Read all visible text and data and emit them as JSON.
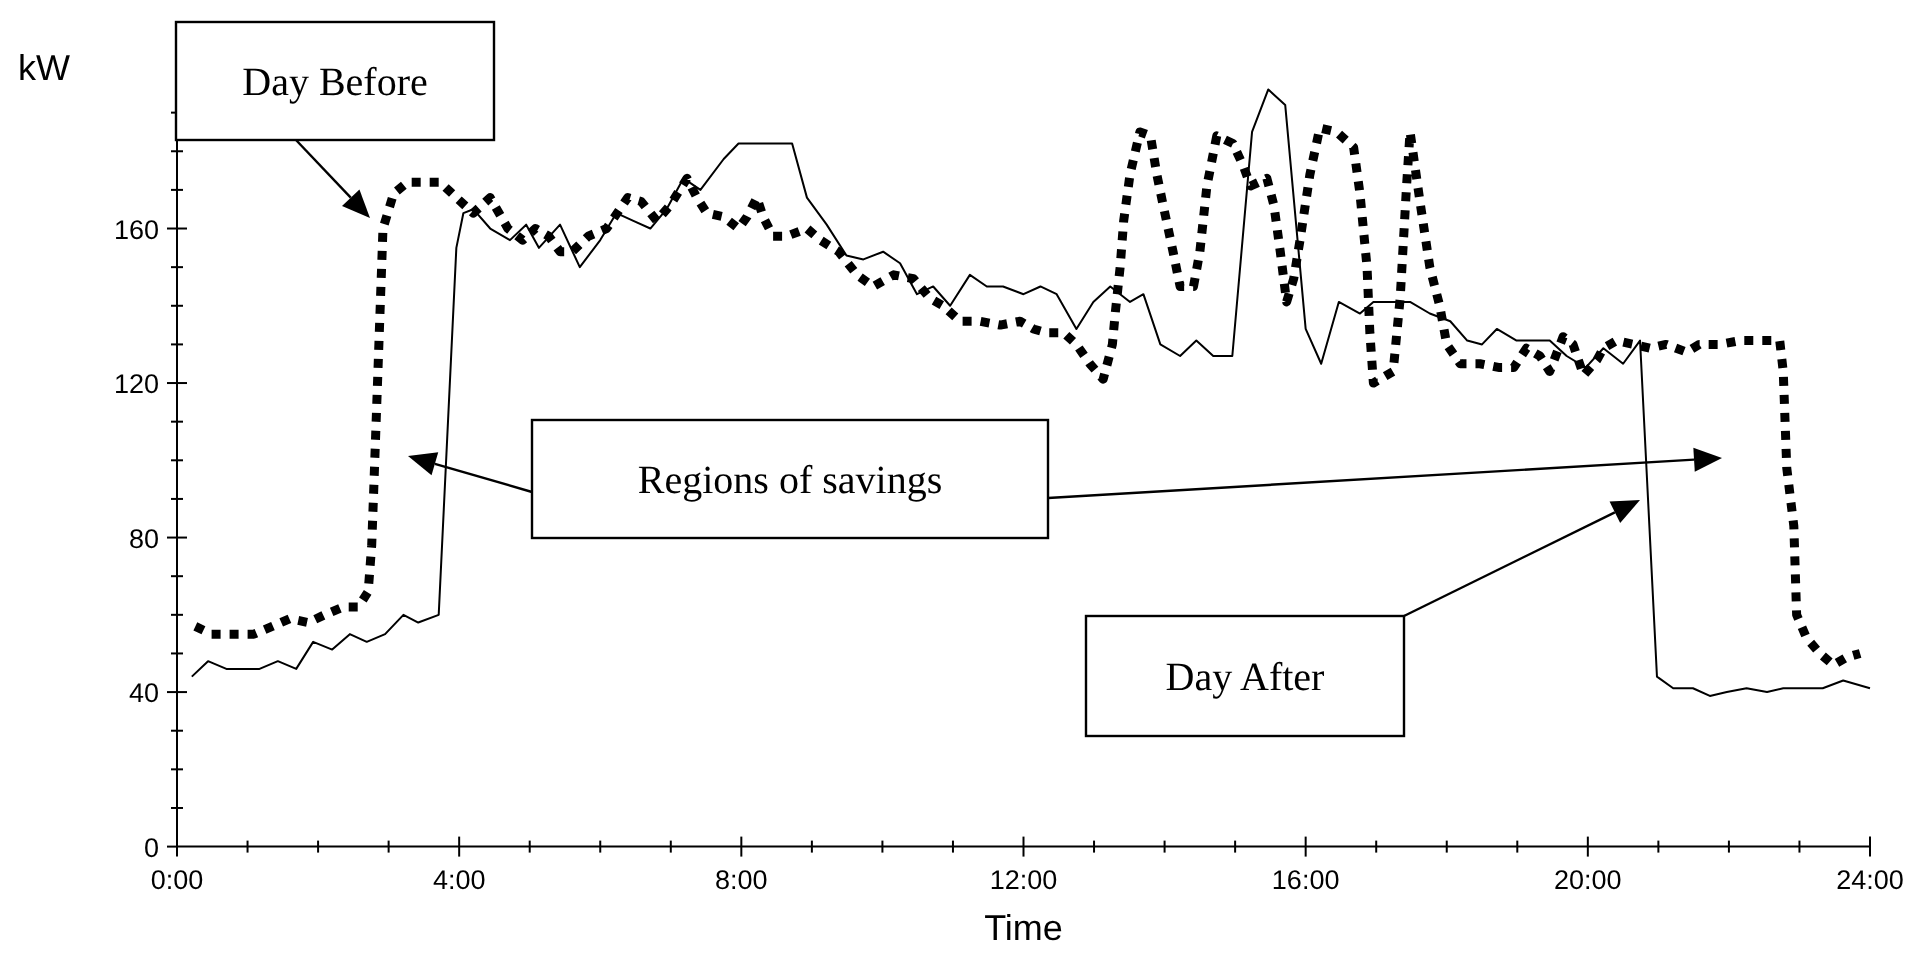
{
  "chart_data": {
    "type": "line",
    "xlabel": "Time",
    "ylabel": "kW",
    "xlim": [
      0,
      24
    ],
    "ylim": [
      0,
      200
    ],
    "xticks": [
      {
        "value": 0,
        "label": "0:00"
      },
      {
        "value": 1,
        "label": null
      },
      {
        "value": 2,
        "label": null
      },
      {
        "value": 3,
        "label": null
      },
      {
        "value": 4,
        "label": "4:00"
      },
      {
        "value": 5,
        "label": null
      },
      {
        "value": 6,
        "label": null
      },
      {
        "value": 7,
        "label": null
      },
      {
        "value": 8,
        "label": "8:00"
      },
      {
        "value": 9,
        "label": null
      },
      {
        "value": 10,
        "label": null
      },
      {
        "value": 11,
        "label": null
      },
      {
        "value": 12,
        "label": "12:00"
      },
      {
        "value": 13,
        "label": null
      },
      {
        "value": 14,
        "label": null
      },
      {
        "value": 15,
        "label": null
      },
      {
        "value": 16,
        "label": "16:00"
      },
      {
        "value": 17,
        "label": null
      },
      {
        "value": 18,
        "label": null
      },
      {
        "value": 19,
        "label": null
      },
      {
        "value": 20,
        "label": "20:00"
      },
      {
        "value": 21,
        "label": null
      },
      {
        "value": 22,
        "label": null
      },
      {
        "value": 23,
        "label": null
      },
      {
        "value": 24,
        "label": "24:00"
      }
    ],
    "yticks": [
      0,
      {
        "value": 10,
        "label": null
      },
      {
        "value": 20,
        "label": null
      },
      {
        "value": 30,
        "label": null
      },
      40,
      {
        "value": 50,
        "label": null
      },
      {
        "value": 60,
        "label": null
      },
      {
        "value": 70,
        "label": null
      },
      80,
      {
        "value": 90,
        "label": null
      },
      {
        "value": 100,
        "label": null
      },
      {
        "value": 110,
        "label": null
      },
      120,
      {
        "value": 130,
        "label": null
      },
      {
        "value": 140,
        "label": null
      },
      {
        "value": 150,
        "label": null
      },
      160,
      {
        "value": 170,
        "label": null
      },
      {
        "value": 180,
        "label": null
      },
      {
        "value": 190,
        "label": null
      }
    ],
    "grid": false,
    "legend": false,
    "marker": "none",
    "annotations": [
      "Regions of savings"
    ],
    "series": [
      {
        "name": "Day Before",
        "color": "#000000",
        "line_style": "dotted",
        "x": [
          0.26,
          0.49,
          0.8,
          1.09,
          1.35,
          1.6,
          1.86,
          2.09,
          2.35,
          2.57,
          2.71,
          2.76,
          2.79,
          2.92,
          3.07,
          3.27,
          3.52,
          3.73,
          3.96,
          4.2,
          4.44,
          4.69,
          4.9,
          5.08,
          5.27,
          5.43,
          5.6,
          5.83,
          6.09,
          6.39,
          6.58,
          6.8,
          6.99,
          7.23,
          7.37,
          7.51,
          7.75,
          7.96,
          8.08,
          8.22,
          8.31,
          8.45,
          8.64,
          8.93,
          9.12,
          9.38,
          9.64,
          9.87,
          10.16,
          10.44,
          10.67,
          10.86,
          11.1,
          11.38,
          11.67,
          11.95,
          12.14,
          12.33,
          12.57,
          12.75,
          12.94,
          13.13,
          13.26,
          13.3,
          13.37,
          13.42,
          13.51,
          13.65,
          13.8,
          13.89,
          13.98,
          14.12,
          14.22,
          14.41,
          14.5,
          14.6,
          14.74,
          14.97,
          15.12,
          15.22,
          15.45,
          15.55,
          15.64,
          15.73,
          15.83,
          15.92,
          16.06,
          16.2,
          16.44,
          16.68,
          16.77,
          16.87,
          16.91,
          16.96,
          17.24,
          17.34,
          17.43,
          17.48,
          17.62,
          17.76,
          17.9,
          18.0,
          18.19,
          18.47,
          18.75,
          18.95,
          19.13,
          19.32,
          19.46,
          19.65,
          19.79,
          19.94,
          20.13,
          20.22,
          20.41,
          20.65,
          20.88,
          21.11,
          21.4,
          21.58,
          21.87,
          22.16,
          22.44,
          22.72,
          22.77,
          22.82,
          22.92,
          22.96,
          23.1,
          23.29,
          23.48,
          23.67,
          23.86
        ],
        "values": [
          57,
          55,
          55,
          55,
          57,
          59,
          58,
          60,
          62,
          62,
          66,
          78,
          93,
          160,
          169,
          172,
          172,
          172,
          168,
          164,
          168,
          160,
          157,
          160,
          158,
          154,
          154,
          158,
          160,
          168,
          167,
          162,
          166,
          173,
          168,
          164,
          163,
          160,
          163,
          168,
          163,
          158,
          158,
          160,
          157,
          154,
          148,
          145,
          148,
          147,
          142,
          140,
          136,
          136,
          135,
          136,
          134,
          133,
          133,
          130,
          125,
          121,
          130,
          138,
          150,
          162,
          174,
          185,
          184,
          174,
          166,
          154,
          145,
          145,
          154,
          171,
          184,
          182,
          176,
          171,
          173,
          166,
          154,
          141,
          147,
          157,
          174,
          186,
          185,
          181,
          169,
          150,
          133,
          120,
          123,
          142,
          171,
          185,
          167,
          150,
          140,
          130,
          125,
          125,
          124,
          124,
          129,
          127,
          123,
          132,
          130,
          122,
          126,
          129,
          131,
          130,
          129,
          130,
          128,
          130,
          130,
          131,
          131,
          131,
          123,
          98,
          83,
          60,
          54,
          50,
          47,
          49,
          50
        ]
      },
      {
        "name": "Day After",
        "color": "#000000",
        "line_style": "solid",
        "x": [
          0.21,
          0.44,
          0.7,
          1.17,
          1.43,
          1.69,
          1.93,
          2.2,
          2.45,
          2.69,
          2.95,
          3.21,
          3.42,
          3.71,
          3.96,
          4.06,
          4.2,
          4.44,
          4.72,
          4.95,
          5.13,
          5.43,
          5.71,
          6.0,
          6.23,
          6.47,
          6.71,
          6.94,
          7.18,
          7.42,
          7.75,
          7.96,
          8.72,
          8.93,
          9.21,
          9.49,
          9.73,
          10.01,
          10.25,
          10.49,
          10.72,
          10.96,
          11.24,
          11.48,
          11.71,
          12.0,
          12.24,
          12.47,
          12.75,
          12.99,
          13.23,
          13.51,
          13.7,
          13.94,
          14.22,
          14.45,
          14.69,
          14.96,
          15.24,
          15.47,
          15.71,
          16.0,
          16.22,
          16.47,
          16.77,
          16.96,
          17.48,
          17.76,
          18.05,
          18.29,
          18.5,
          18.71,
          18.99,
          19.46,
          19.7,
          19.97,
          20.22,
          20.5,
          20.74,
          20.98,
          21.21,
          21.49,
          21.73,
          21.97,
          22.25,
          22.54,
          22.77,
          23.01,
          23.33,
          23.62,
          24.0
        ],
        "values": [
          44,
          48,
          46,
          46,
          48,
          46,
          53,
          51,
          55,
          53,
          55,
          60,
          58,
          60,
          155,
          164,
          165,
          160,
          157,
          161,
          155,
          161,
          150,
          157,
          164,
          162,
          160,
          165,
          173,
          170,
          178,
          182,
          182,
          168,
          161,
          153,
          152,
          154,
          151,
          143,
          145,
          140,
          148,
          145,
          145,
          143,
          145,
          143,
          134,
          141,
          145,
          141,
          143,
          130,
          127,
          131,
          127,
          127,
          185,
          196,
          192,
          134,
          125,
          141,
          138,
          141,
          141,
          138,
          136,
          131,
          130,
          134,
          131,
          131,
          127,
          124,
          129,
          125,
          131,
          44,
          41,
          41,
          39,
          40,
          41,
          40,
          41,
          41,
          41,
          43,
          41
        ]
      }
    ]
  }
}
